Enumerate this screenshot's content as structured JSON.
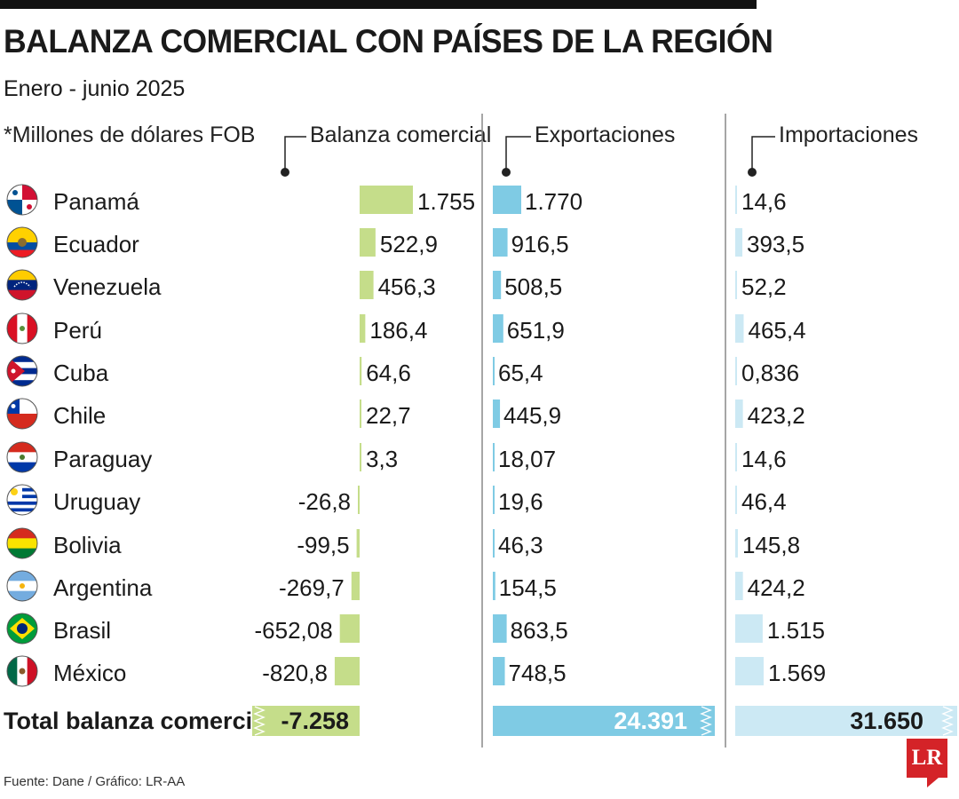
{
  "title": "BALANZA COMERCIAL CON PAÍSES DE LA REGIÓN",
  "subtitle": "Enero - junio 2025",
  "units_note": "*Millones de dólares FOB",
  "columns": {
    "balance": "Balanza comercial",
    "exports": "Exportaciones",
    "imports": "Importaciones"
  },
  "footer": "Fuente: Dane / Gráfico: LR-AA",
  "logo_text": "LR",
  "colors": {
    "balance": "#c5dd8a",
    "exports": "#7fcbe4",
    "imports": "#cce9f4",
    "axis": "#888888"
  },
  "chart_data": {
    "type": "bar",
    "categories": [
      "Panamá",
      "Ecuador",
      "Venezuela",
      "Perú",
      "Cuba",
      "Chile",
      "Paraguay",
      "Uruguay",
      "Bolivia",
      "Argentina",
      "Brasil",
      "México"
    ],
    "series": [
      {
        "name": "Balanza comercial",
        "values": [
          1755,
          522.9,
          456.3,
          186.4,
          64.6,
          22.7,
          3.3,
          -26.8,
          -99.5,
          -269.7,
          -652.08,
          -820.8
        ],
        "labels": [
          "1.755",
          "522,9",
          "456,3",
          "186,4",
          "64,6",
          "22,7",
          "3,3",
          "-26,8",
          "-99,5",
          "-269,7",
          "-652,08",
          "-820,8"
        ]
      },
      {
        "name": "Exportaciones",
        "values": [
          1770,
          916.5,
          508.5,
          651.9,
          65.4,
          445.9,
          18.07,
          19.6,
          46.3,
          154.5,
          863.5,
          748.5
        ],
        "labels": [
          "1.770",
          "916,5",
          "508,5",
          "651,9",
          "65,4",
          "445,9",
          "18,07",
          "19,6",
          "46,3",
          "154,5",
          "863,5",
          "748,5"
        ]
      },
      {
        "name": "Importaciones",
        "values": [
          14.6,
          393.5,
          52.2,
          465.4,
          0.836,
          423.2,
          14.6,
          46.4,
          145.8,
          424.2,
          1515,
          1569
        ],
        "labels": [
          "14,6",
          "393,5",
          "52,2",
          "465,4",
          "0,836",
          "423,2",
          "14,6",
          "46,4",
          "145,8",
          "424,2",
          "1.515",
          "1.569"
        ]
      }
    ],
    "totals": {
      "label": "Total balanza comercial",
      "balance": "-7.258",
      "exports": "24.391",
      "imports": "31.650"
    }
  }
}
